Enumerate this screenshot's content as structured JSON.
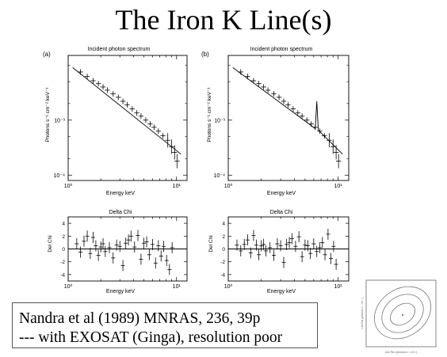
{
  "slide": {
    "title": "The Iron K Line(s)"
  },
  "caption": {
    "line1": "Nandra et al (1989) MNRAS, 236, 39p",
    "line2": "--- with EXOSAT (Ginga), resolution poor"
  },
  "panels": {
    "a": {
      "label": "(a)",
      "spectrum_title": "Incident photon spectrum",
      "residual_title": "Delta Chi"
    },
    "b": {
      "label": "(b)",
      "spectrum_title": "Incident photon spectrum",
      "residual_title": "Delta Chi"
    }
  },
  "axes": {
    "spectrum_ylabel": "Photons s⁻¹ cm⁻² keV⁻¹",
    "residual_ylabel": "Del Chi",
    "xlabel": "Energy keV",
    "spectrum_yticks": [
      "10⁻³",
      "10⁻⁴"
    ],
    "residual_yticks": [
      "4",
      "2",
      "0",
      "-2",
      "-4"
    ],
    "xticks": [
      "10⁰",
      "10¹"
    ]
  },
  "inset": {
    "ylabel": "Line flux (photons s⁻¹ cm⁻²)",
    "xlabel": "Line Flux (photons s⁻¹ cm⁻²)"
  },
  "chart_data": [
    {
      "type": "scatter",
      "panel": "a",
      "title": "Incident photon spectrum",
      "xlabel": "Energy keV",
      "ylabel": "Photons s⁻¹ cm⁻² keV⁻¹",
      "xscale": "log",
      "yscale": "log",
      "xlim": [
        1.0,
        12.5
      ],
      "ylim": [
        8e-05,
        0.015
      ],
      "points": [
        [
          1.3,
          0.0075
        ],
        [
          1.5,
          0.0062
        ],
        [
          1.7,
          0.0052
        ],
        [
          1.9,
          0.0046
        ],
        [
          2.1,
          0.004
        ],
        [
          2.3,
          0.0035
        ],
        [
          2.6,
          0.003
        ],
        [
          2.9,
          0.0026
        ],
        [
          3.2,
          0.0022
        ],
        [
          3.5,
          0.0019
        ],
        [
          3.9,
          0.0016
        ],
        [
          4.3,
          0.00135
        ],
        [
          4.7,
          0.00118
        ],
        [
          5.2,
          0.001
        ],
        [
          5.7,
          0.00085
        ],
        [
          6.2,
          0.00074
        ],
        [
          6.8,
          0.00063
        ],
        [
          7.5,
          0.00052
        ],
        [
          8.3,
          0.00043
        ],
        [
          9.0,
          0.00033
        ],
        [
          9.6,
          0.00026
        ],
        [
          10.1,
          0.00018
        ]
      ],
      "model": [
        [
          1.1,
          0.009
        ],
        [
          11.0,
          0.00024
        ]
      ]
    },
    {
      "type": "scatter",
      "panel": "b",
      "title": "Incident photon spectrum",
      "xlabel": "Energy keV",
      "ylabel": "Photons s⁻¹ cm⁻² keV⁻¹",
      "xscale": "log",
      "yscale": "log",
      "xlim": [
        1.0,
        12.5
      ],
      "ylim": [
        8e-05,
        0.015
      ],
      "points": [
        [
          1.3,
          0.0075
        ],
        [
          1.5,
          0.0062
        ],
        [
          1.7,
          0.0052
        ],
        [
          1.9,
          0.0046
        ],
        [
          2.1,
          0.004
        ],
        [
          2.3,
          0.0035
        ],
        [
          2.6,
          0.003
        ],
        [
          2.9,
          0.0026
        ],
        [
          3.2,
          0.0022
        ],
        [
          3.5,
          0.0019
        ],
        [
          3.9,
          0.0016
        ],
        [
          4.3,
          0.00135
        ],
        [
          4.7,
          0.00118
        ],
        [
          5.2,
          0.001
        ],
        [
          5.7,
          0.00085
        ],
        [
          6.2,
          0.00074
        ],
        [
          6.8,
          0.00063
        ],
        [
          7.5,
          0.00052
        ],
        [
          8.3,
          0.00043
        ],
        [
          9.0,
          0.00033
        ],
        [
          9.6,
          0.00026
        ],
        [
          10.1,
          0.00018
        ]
      ],
      "model": [
        [
          1.1,
          0.009
        ],
        [
          6.2,
          0.0007
        ],
        [
          6.4,
          0.0022
        ],
        [
          6.6,
          0.00066
        ],
        [
          11.0,
          0.00024
        ]
      ]
    },
    {
      "type": "scatter",
      "panel": "a",
      "title": "Delta Chi",
      "xlabel": "Energy keV",
      "ylabel": "Del Chi",
      "xscale": "log",
      "xlim": [
        1.0,
        12.5
      ],
      "ylim": [
        -5,
        5
      ],
      "points": [
        [
          1.2,
          0.8
        ],
        [
          1.3,
          -0.5
        ],
        [
          1.4,
          1.2
        ],
        [
          1.5,
          2.0
        ],
        [
          1.6,
          -0.7
        ],
        [
          1.7,
          1.8
        ],
        [
          1.8,
          0.5
        ],
        [
          1.9,
          -1.0
        ],
        [
          2.0,
          0.3
        ],
        [
          2.1,
          0.8
        ],
        [
          2.2,
          -0.4
        ],
        [
          2.4,
          0.2
        ],
        [
          2.6,
          -1.4
        ],
        [
          2.8,
          0.6
        ],
        [
          3.0,
          0.4
        ],
        [
          3.2,
          -2.6
        ],
        [
          3.4,
          0.9
        ],
        [
          3.6,
          1.4
        ],
        [
          3.8,
          2.0
        ],
        [
          4.1,
          0.3
        ],
        [
          4.4,
          2.1
        ],
        [
          4.7,
          -1.6
        ],
        [
          5.0,
          0.9
        ],
        [
          5.3,
          1.1
        ],
        [
          5.6,
          -0.9
        ],
        [
          6.0,
          0.7
        ],
        [
          6.4,
          -2.2
        ],
        [
          6.8,
          0.5
        ],
        [
          7.2,
          -1.1
        ],
        [
          7.6,
          0.4
        ],
        [
          8.1,
          -1.8
        ],
        [
          8.6,
          -3.2
        ],
        [
          9.1,
          0.2
        ]
      ]
    },
    {
      "type": "scatter",
      "panel": "b",
      "title": "Delta Chi",
      "xlabel": "Energy keV",
      "ylabel": "Del Chi",
      "xscale": "log",
      "xlim": [
        1.0,
        12.5
      ],
      "ylim": [
        -5,
        5
      ],
      "points": [
        [
          1.2,
          0.6
        ],
        [
          1.3,
          -0.3
        ],
        [
          1.4,
          0.7
        ],
        [
          1.5,
          1.4
        ],
        [
          1.6,
          -0.6
        ],
        [
          1.7,
          2.1
        ],
        [
          1.8,
          0.6
        ],
        [
          1.9,
          -0.9
        ],
        [
          2.0,
          0.5
        ],
        [
          2.1,
          0.7
        ],
        [
          2.2,
          -0.3
        ],
        [
          2.4,
          0.2
        ],
        [
          2.6,
          -1.0
        ],
        [
          2.8,
          0.8
        ],
        [
          3.0,
          0.5
        ],
        [
          3.2,
          -2.1
        ],
        [
          3.4,
          0.7
        ],
        [
          3.6,
          1.0
        ],
        [
          3.8,
          1.6
        ],
        [
          4.1,
          0.4
        ],
        [
          4.4,
          1.9
        ],
        [
          4.7,
          -1.2
        ],
        [
          5.0,
          0.6
        ],
        [
          5.3,
          0.5
        ],
        [
          5.6,
          -0.7
        ],
        [
          6.0,
          0.8
        ],
        [
          6.4,
          -0.4
        ],
        [
          6.8,
          0.2
        ],
        [
          7.2,
          1.0
        ],
        [
          7.6,
          -0.9
        ],
        [
          8.1,
          2.3
        ],
        [
          8.6,
          -1.5
        ],
        [
          9.1,
          0.4
        ],
        [
          9.6,
          -2.4
        ]
      ]
    }
  ]
}
